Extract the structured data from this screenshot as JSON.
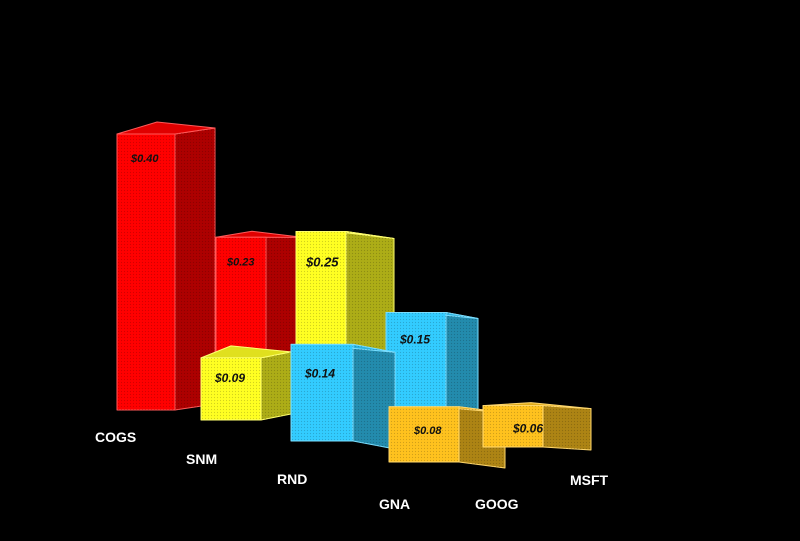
{
  "chart_data": {
    "type": "bar",
    "style": "3d",
    "categories": [
      "COGS",
      "SNM",
      "RND",
      "GNA",
      "GOOG",
      "MSFT"
    ],
    "series": [
      {
        "values": [
          0.4,
          0.23,
          0.25,
          0.15,
          0.08,
          0.06
        ]
      },
      {
        "values": [
          null,
          0.09,
          0.14,
          null,
          null,
          null
        ]
      }
    ],
    "value_labels": [
      {
        "category": "COGS",
        "text": "$0.40"
      },
      {
        "category": "SNM",
        "text": "$0.23"
      },
      {
        "category": "RND",
        "text": "$0.25"
      },
      {
        "category": "GNA",
        "text": "$0.15"
      },
      {
        "category": "SNM",
        "text": "$0.09"
      },
      {
        "category": "RND",
        "text": "$0.14"
      },
      {
        "category": "GOOG",
        "text": "$0.08"
      },
      {
        "category": "MSFT",
        "text": "$0.06"
      }
    ],
    "bar_colors": {
      "red": "#ff0000",
      "yellow": "#ffff22",
      "cyan": "#33ccff",
      "gold": "#ffc21e"
    },
    "background": "#000000",
    "grid": false,
    "legend": "none"
  }
}
